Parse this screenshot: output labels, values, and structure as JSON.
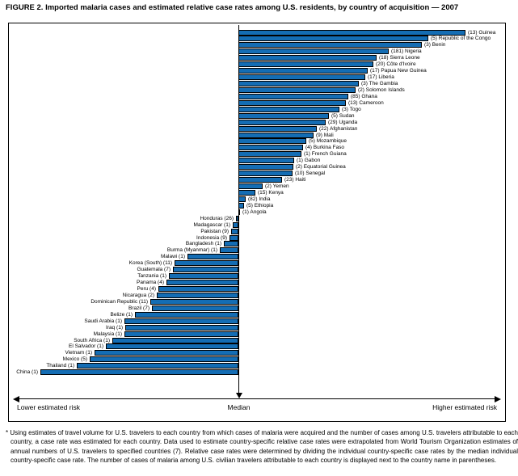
{
  "chart_data": {
    "type": "bar",
    "subtype": "horizontal-diverging-from-median",
    "title": "FIGURE 2. Imported malaria cases and estimated relative case rates among U.S. residents, by country of acquisition — 2007",
    "axis_labels": {
      "lower": "Lower estimated risk",
      "median": "Median",
      "higher": "Higher estimated risk"
    },
    "legend": "none",
    "value_scale": "relative case rate; no numeric ticks shown — bar lengths recorded as pixel offset from the median line",
    "label_format": {
      "higher": "(cases) country",
      "lower": "country (cases)"
    },
    "higher_risk": [
      {
        "country": "Guinea",
        "cases": 13,
        "len": 281
      },
      {
        "country": "Republic of the Congo",
        "cases": 5,
        "len": 235
      },
      {
        "country": "Benin",
        "cases": 3,
        "len": 227
      },
      {
        "country": "Nigeria",
        "cases": 181,
        "len": 186
      },
      {
        "country": "Sierra Leone",
        "cases": 18,
        "len": 171
      },
      {
        "country": "Côte d'Ivoire",
        "cases": 20,
        "len": 167
      },
      {
        "country": "Papua New Guinea",
        "cases": 17,
        "len": 160
      },
      {
        "country": "Liberia",
        "cases": 17,
        "len": 157
      },
      {
        "country": "The Gambia",
        "cases": 3,
        "len": 149
      },
      {
        "country": "Solomon Islands",
        "cases": 2,
        "len": 145
      },
      {
        "country": "Ghana",
        "cases": 85,
        "len": 136
      },
      {
        "country": "Cameroon",
        "cases": 13,
        "len": 133
      },
      {
        "country": "Togo",
        "cases": 3,
        "len": 125
      },
      {
        "country": "Sudan",
        "cases": 5,
        "len": 112
      },
      {
        "country": "Uganda",
        "cases": 29,
        "len": 108
      },
      {
        "country": "Afghanistan",
        "cases": 22,
        "len": 97
      },
      {
        "country": "Mali",
        "cases": 9,
        "len": 93
      },
      {
        "country": "Mozambique",
        "cases": 5,
        "len": 84
      },
      {
        "country": "Burkina Faso",
        "cases": 4,
        "len": 80
      },
      {
        "country": "French Guiana",
        "cases": 1,
        "len": 78
      },
      {
        "country": "Gabon",
        "cases": 1,
        "len": 69
      },
      {
        "country": "Equatorial Guinea",
        "cases": 2,
        "len": 68
      },
      {
        "country": "Senegal",
        "cases": 10,
        "len": 67
      },
      {
        "country": "Haiti",
        "cases": 23,
        "len": 54
      },
      {
        "country": "Yemen",
        "cases": 2,
        "len": 30
      },
      {
        "country": "Kenya",
        "cases": 15,
        "len": 21
      },
      {
        "country": "India",
        "cases": 82,
        "len": 9
      },
      {
        "country": "Ethiopia",
        "cases": 5,
        "len": 7
      },
      {
        "country": "Angola",
        "cases": 1,
        "len": 2
      }
    ],
    "lower_risk": [
      {
        "country": "Honduras",
        "cases": 26,
        "len": 3
      },
      {
        "country": "Madagascar",
        "cases": 1,
        "len": 7
      },
      {
        "country": "Pakistan",
        "cases": 9,
        "len": 9
      },
      {
        "country": "Indonesia",
        "cases": 9,
        "len": 11
      },
      {
        "country": "Bangladesh",
        "cases": 1,
        "len": 18
      },
      {
        "country": "Burma (Myanmar)",
        "cases": 1,
        "len": 23
      },
      {
        "country": "Malawi",
        "cases": 1,
        "len": 63
      },
      {
        "country": "Korea (South)",
        "cases": 11,
        "len": 79
      },
      {
        "country": "Guatemala",
        "cases": 7,
        "len": 81
      },
      {
        "country": "Tanzania",
        "cases": 1,
        "len": 86
      },
      {
        "country": "Panama",
        "cases": 4,
        "len": 89
      },
      {
        "country": "Peru",
        "cases": 4,
        "len": 99
      },
      {
        "country": "Nicaragua",
        "cases": 2,
        "len": 101
      },
      {
        "country": "Dominican Republic",
        "cases": 11,
        "len": 109
      },
      {
        "country": "Brazil",
        "cases": 7,
        "len": 107
      },
      {
        "country": "Belize",
        "cases": 1,
        "len": 128
      },
      {
        "country": "Saudi Arabia",
        "cases": 1,
        "len": 141
      },
      {
        "country": "Iraq",
        "cases": 1,
        "len": 140
      },
      {
        "country": "Malaysia",
        "cases": 1,
        "len": 141
      },
      {
        "country": "South Africa",
        "cases": 1,
        "len": 156
      },
      {
        "country": "El Salvador",
        "cases": 1,
        "len": 164
      },
      {
        "country": "Vietnam",
        "cases": 1,
        "len": 178
      },
      {
        "country": "Mexico",
        "cases": 5,
        "len": 184
      },
      {
        "country": "Thailand",
        "cases": 1,
        "len": 200
      },
      {
        "country": "China",
        "cases": 1,
        "len": 245
      }
    ]
  },
  "colors": {
    "bar_fill": "#146db4",
    "bar_border": "#000000",
    "box_border": "#000000",
    "text": "#000000"
  },
  "footnote": "* Using estimates of travel volume for U.S. travelers to each country from which cases of malaria were acquired and the number of cases among U.S. travelers attributable to each country, a case rate was estimated for each country. Data used to estimate country-specific relative case rates were extrapolated from World Tourism Organization estimates of annual numbers of U.S. travelers to specified countries (7). Relative case rates were determined by dividing the individual country-specific case rates by the median individual country-specific case rate. The number of cases of malaria among U.S. civilian travelers attributable to each country is displayed next to the country name in parentheses."
}
